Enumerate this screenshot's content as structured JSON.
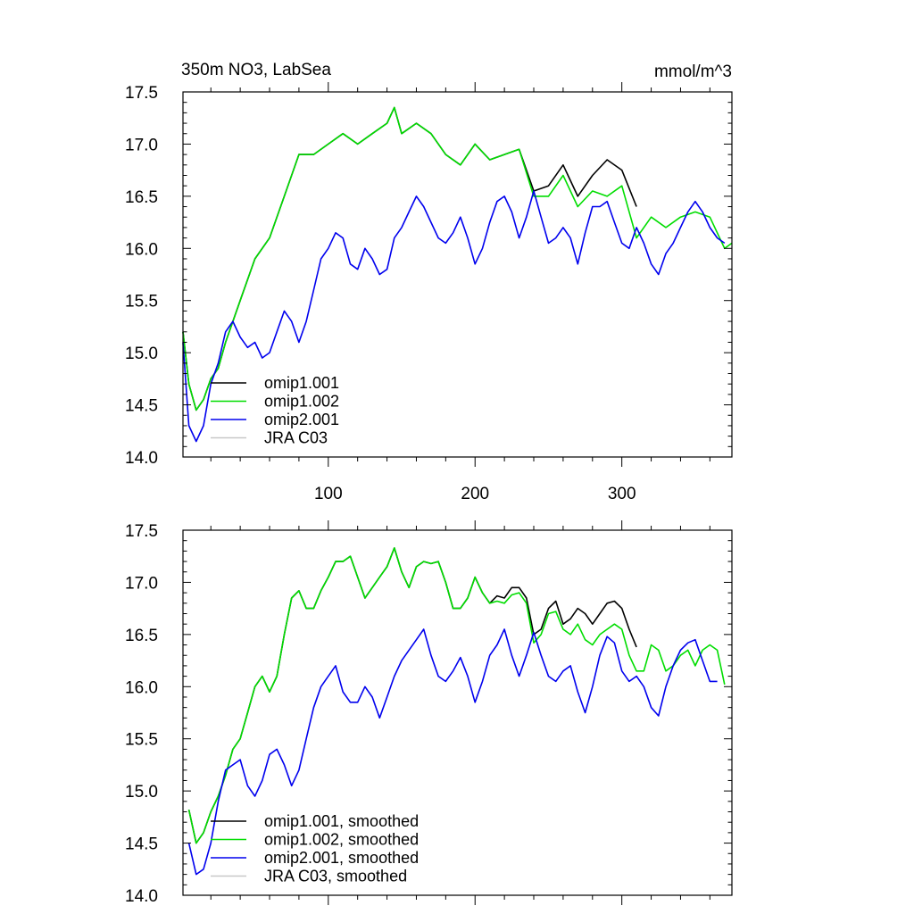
{
  "chart_data": [
    {
      "type": "line",
      "title": "350m NO3, LabSea",
      "units": "mmol/m^3",
      "xlim": [
        1,
        375
      ],
      "ylim": [
        14.0,
        17.5
      ],
      "x_ticks": [
        100,
        200,
        300
      ],
      "x_tick_labels": [
        "100",
        "200",
        "300"
      ],
      "y_ticks": [
        14.0,
        14.5,
        15.0,
        15.5,
        16.0,
        16.5,
        17.0,
        17.5
      ],
      "y_tick_labels": [
        "14.0",
        "14.5",
        "15.0",
        "15.5",
        "16.0",
        "16.5",
        "17.0",
        "17.5"
      ],
      "legend_position": "bottom-left",
      "series": [
        {
          "name": "omip1.001",
          "color": "#000000",
          "x": [
            1,
            5,
            10,
            15,
            20,
            25,
            30,
            40,
            50,
            60,
            70,
            80,
            90,
            100,
            110,
            120,
            130,
            140,
            145,
            150,
            160,
            170,
            180,
            190,
            200,
            210,
            220,
            230,
            240,
            250,
            260,
            270,
            280,
            290,
            300,
            310
          ],
          "values": [
            15.2,
            14.7,
            14.45,
            14.55,
            14.75,
            14.85,
            15.1,
            15.5,
            15.9,
            16.1,
            16.5,
            16.9,
            16.9,
            17.0,
            17.1,
            17.0,
            17.1,
            17.2,
            17.35,
            17.1,
            17.2,
            17.1,
            16.9,
            16.8,
            17.0,
            16.85,
            16.9,
            16.95,
            16.55,
            16.6,
            16.8,
            16.5,
            16.7,
            16.85,
            16.75,
            16.4
          ]
        },
        {
          "name": "omip1.002",
          "color": "#00dd00",
          "x": [
            1,
            5,
            10,
            15,
            20,
            25,
            30,
            40,
            50,
            60,
            70,
            80,
            90,
            100,
            110,
            120,
            130,
            140,
            145,
            150,
            160,
            170,
            180,
            190,
            200,
            210,
            220,
            230,
            240,
            250,
            260,
            270,
            280,
            290,
            300,
            310,
            320,
            330,
            340,
            350,
            360,
            370,
            375
          ],
          "values": [
            15.2,
            14.7,
            14.45,
            14.55,
            14.75,
            14.85,
            15.1,
            15.5,
            15.9,
            16.1,
            16.5,
            16.9,
            16.9,
            17.0,
            17.1,
            17.0,
            17.1,
            17.2,
            17.35,
            17.1,
            17.2,
            17.1,
            16.9,
            16.8,
            17.0,
            16.85,
            16.9,
            16.95,
            16.5,
            16.5,
            16.7,
            16.4,
            16.55,
            16.5,
            16.6,
            16.1,
            16.3,
            16.2,
            16.3,
            16.35,
            16.3,
            16.0,
            16.05
          ]
        },
        {
          "name": "omip2.001",
          "color": "#0000ee",
          "x": [
            1,
            5,
            10,
            15,
            20,
            25,
            30,
            35,
            40,
            45,
            50,
            55,
            60,
            65,
            70,
            75,
            80,
            85,
            90,
            95,
            100,
            105,
            110,
            115,
            120,
            125,
            130,
            135,
            140,
            145,
            150,
            155,
            160,
            165,
            170,
            175,
            180,
            185,
            190,
            195,
            200,
            205,
            210,
            215,
            220,
            225,
            230,
            235,
            240,
            245,
            250,
            255,
            260,
            265,
            270,
            275,
            280,
            285,
            290,
            295,
            300,
            305,
            310,
            315,
            320,
            325,
            330,
            335,
            340,
            345,
            350,
            355,
            360,
            365,
            370
          ],
          "values": [
            15.1,
            14.3,
            14.15,
            14.3,
            14.7,
            14.9,
            15.2,
            15.3,
            15.15,
            15.05,
            15.1,
            14.95,
            15.0,
            15.2,
            15.4,
            15.3,
            15.1,
            15.3,
            15.6,
            15.9,
            16.0,
            16.15,
            16.1,
            15.85,
            15.8,
            16.0,
            15.9,
            15.75,
            15.8,
            16.1,
            16.2,
            16.35,
            16.5,
            16.4,
            16.25,
            16.1,
            16.05,
            16.15,
            16.3,
            16.1,
            15.85,
            16.0,
            16.25,
            16.45,
            16.5,
            16.35,
            16.1,
            16.3,
            16.55,
            16.3,
            16.05,
            16.1,
            16.2,
            16.1,
            15.85,
            16.15,
            16.4,
            16.4,
            16.45,
            16.25,
            16.05,
            16.0,
            16.2,
            16.05,
            15.85,
            15.75,
            15.95,
            16.05,
            16.2,
            16.35,
            16.45,
            16.35,
            16.2,
            16.1,
            16.05
          ]
        },
        {
          "name": "JRA C03",
          "color": "#c8c8c8",
          "x": [],
          "values": []
        }
      ]
    },
    {
      "type": "line",
      "title": "",
      "xlim": [
        1,
        375
      ],
      "ylim": [
        14.0,
        17.5
      ],
      "x_ticks": [
        100,
        200,
        300
      ],
      "x_tick_labels": [],
      "y_ticks": [
        14.0,
        14.5,
        15.0,
        15.5,
        16.0,
        16.5,
        17.0,
        17.5
      ],
      "y_tick_labels": [
        "14.0",
        "14.5",
        "15.0",
        "15.5",
        "16.0",
        "16.5",
        "17.0",
        "17.5"
      ],
      "legend_position": "bottom-left",
      "series": [
        {
          "name": "omip1.001, smoothed",
          "color": "#000000",
          "x": [
            5,
            10,
            15,
            20,
            25,
            30,
            35,
            40,
            45,
            50,
            55,
            60,
            65,
            70,
            75,
            80,
            85,
            90,
            95,
            100,
            105,
            110,
            115,
            120,
            125,
            130,
            135,
            140,
            145,
            150,
            155,
            160,
            165,
            170,
            175,
            180,
            185,
            190,
            195,
            200,
            205,
            210,
            215,
            220,
            225,
            230,
            235,
            240,
            245,
            250,
            255,
            260,
            265,
            270,
            275,
            280,
            285,
            290,
            295,
            300,
            305,
            310
          ],
          "values": [
            14.82,
            14.5,
            14.6,
            14.8,
            14.95,
            15.15,
            15.4,
            15.5,
            15.75,
            16.0,
            16.1,
            15.95,
            16.1,
            16.5,
            16.85,
            16.92,
            16.75,
            16.75,
            16.92,
            17.05,
            17.2,
            17.2,
            17.25,
            17.05,
            16.85,
            16.95,
            17.05,
            17.15,
            17.33,
            17.1,
            16.95,
            17.15,
            17.2,
            17.18,
            17.2,
            17.0,
            16.75,
            16.75,
            16.85,
            17.05,
            16.9,
            16.8,
            16.87,
            16.85,
            16.95,
            16.95,
            16.85,
            16.5,
            16.55,
            16.75,
            16.82,
            16.6,
            16.65,
            16.75,
            16.7,
            16.6,
            16.7,
            16.8,
            16.82,
            16.75,
            16.55,
            16.38
          ]
        },
        {
          "name": "omip1.002, smoothed",
          "color": "#00dd00",
          "x": [
            5,
            10,
            15,
            20,
            25,
            30,
            35,
            40,
            45,
            50,
            55,
            60,
            65,
            70,
            75,
            80,
            85,
            90,
            95,
            100,
            105,
            110,
            115,
            120,
            125,
            130,
            135,
            140,
            145,
            150,
            155,
            160,
            165,
            170,
            175,
            180,
            185,
            190,
            195,
            200,
            205,
            210,
            215,
            220,
            225,
            230,
            235,
            240,
            245,
            250,
            255,
            260,
            265,
            270,
            275,
            280,
            285,
            290,
            295,
            300,
            305,
            310,
            315,
            320,
            325,
            330,
            335,
            340,
            345,
            350,
            355,
            360,
            365,
            370
          ],
          "values": [
            14.82,
            14.5,
            14.6,
            14.8,
            14.95,
            15.15,
            15.4,
            15.5,
            15.75,
            16.0,
            16.1,
            15.95,
            16.1,
            16.5,
            16.85,
            16.92,
            16.75,
            16.75,
            16.92,
            17.05,
            17.2,
            17.2,
            17.25,
            17.05,
            16.85,
            16.95,
            17.05,
            17.15,
            17.33,
            17.1,
            16.95,
            17.15,
            17.2,
            17.18,
            17.2,
            17.0,
            16.75,
            16.75,
            16.85,
            17.05,
            16.9,
            16.8,
            16.82,
            16.8,
            16.88,
            16.9,
            16.8,
            16.42,
            16.5,
            16.7,
            16.72,
            16.55,
            16.5,
            16.6,
            16.45,
            16.4,
            16.5,
            16.55,
            16.6,
            16.55,
            16.3,
            16.15,
            16.15,
            16.4,
            16.35,
            16.15,
            16.2,
            16.3,
            16.35,
            16.2,
            16.35,
            16.4,
            16.35,
            16.02
          ]
        },
        {
          "name": "omip2.001, smoothed",
          "color": "#0000ee",
          "x": [
            5,
            10,
            15,
            20,
            25,
            30,
            35,
            40,
            45,
            50,
            55,
            60,
            65,
            70,
            75,
            80,
            85,
            90,
            95,
            100,
            105,
            110,
            115,
            120,
            125,
            130,
            135,
            140,
            145,
            150,
            155,
            160,
            165,
            170,
            175,
            180,
            185,
            190,
            195,
            200,
            205,
            210,
            215,
            220,
            225,
            230,
            235,
            240,
            245,
            250,
            255,
            260,
            265,
            270,
            275,
            280,
            285,
            290,
            295,
            300,
            305,
            310,
            315,
            320,
            325,
            330,
            335,
            340,
            345,
            350,
            355,
            360,
            365
          ],
          "values": [
            14.5,
            14.2,
            14.25,
            14.5,
            14.9,
            15.2,
            15.25,
            15.3,
            15.05,
            14.95,
            15.1,
            15.35,
            15.4,
            15.25,
            15.05,
            15.2,
            15.5,
            15.8,
            16.0,
            16.1,
            16.2,
            15.95,
            15.85,
            15.85,
            16.0,
            15.9,
            15.7,
            15.9,
            16.1,
            16.25,
            16.35,
            16.45,
            16.55,
            16.3,
            16.1,
            16.05,
            16.15,
            16.28,
            16.1,
            15.85,
            16.05,
            16.3,
            16.4,
            16.55,
            16.3,
            16.1,
            16.3,
            16.52,
            16.3,
            16.1,
            16.05,
            16.15,
            16.2,
            15.95,
            15.75,
            16.0,
            16.3,
            16.48,
            16.42,
            16.15,
            16.05,
            16.1,
            16.0,
            15.8,
            15.72,
            16.0,
            16.2,
            16.35,
            16.42,
            16.45,
            16.25,
            16.05,
            16.05
          ]
        },
        {
          "name": "JRA C03, smoothed",
          "color": "#c8c8c8",
          "x": [],
          "values": []
        }
      ]
    }
  ]
}
